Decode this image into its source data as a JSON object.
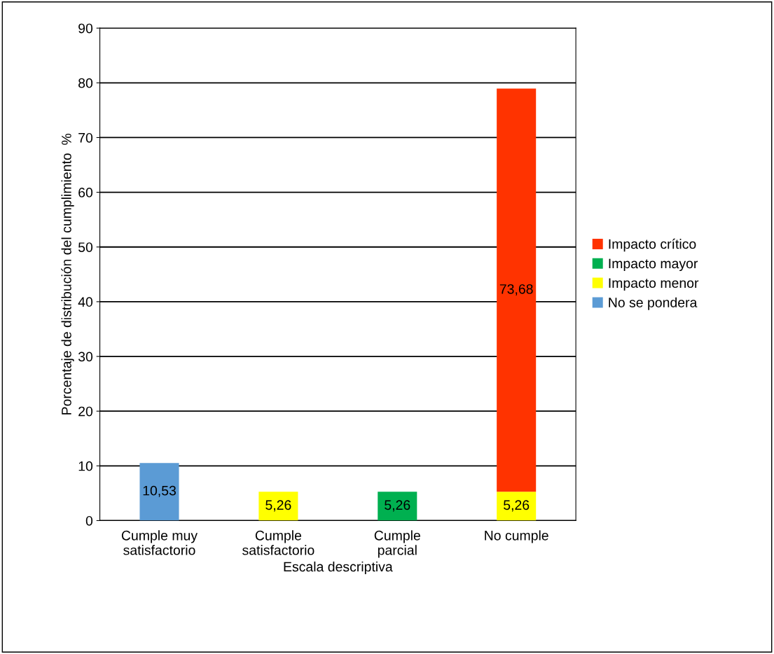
{
  "chart_data": {
    "type": "bar",
    "stacked": true,
    "xlabel": "Escala descriptiva",
    "ylabel": "Porcentaje de distribución del cumplimiento  %",
    "categories": [
      "Cumple muy\nsatisfactorio",
      "Cumple\nsatisfactorio",
      "Cumple\nparcial",
      "No cumple"
    ],
    "series": [
      {
        "name": "No se pondera",
        "color": "#5b9bd5",
        "values": [
          10.53,
          null,
          null,
          null
        ],
        "value_labels": [
          "10,53",
          null,
          null,
          null
        ]
      },
      {
        "name": "Impacto menor",
        "color": "#ffff00",
        "values": [
          null,
          5.26,
          null,
          5.26
        ],
        "value_labels": [
          null,
          "5,26",
          null,
          "5,26"
        ]
      },
      {
        "name": "Impacto mayor",
        "color": "#00b050",
        "values": [
          null,
          null,
          5.26,
          null
        ],
        "value_labels": [
          null,
          null,
          "5,26",
          null
        ]
      },
      {
        "name": "Impacto crítico",
        "color": "#ff3300",
        "values": [
          null,
          null,
          null,
          73.68
        ],
        "value_labels": [
          null,
          null,
          null,
          "73,68"
        ]
      }
    ],
    "ylim": [
      0,
      90
    ],
    "yticks": [
      0,
      10,
      20,
      30,
      40,
      50,
      60,
      70,
      80,
      90
    ],
    "grid": "y",
    "legend": "right"
  }
}
